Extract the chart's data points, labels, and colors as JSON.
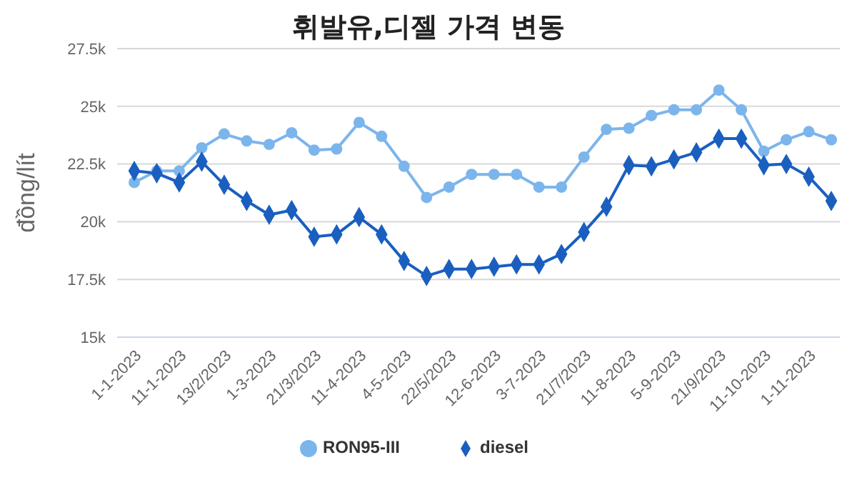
{
  "chart_data": {
    "type": "line",
    "title": "휘발유,디젤 가격 변동",
    "ylabel": "đồng/lít",
    "categories": [
      "1-1-2023",
      null,
      "11-1-2023",
      null,
      "13/2/2023",
      null,
      "1-3-2023",
      null,
      "21/3/2023",
      null,
      "11-4-2023",
      null,
      "4-5-2023",
      null,
      "22/5/2023",
      null,
      "12-6-2023",
      null,
      "3-7-2023",
      null,
      "21/7/2023",
      null,
      "11-8-2023",
      null,
      "5-9-2023",
      null,
      "21/9/2023",
      null,
      "11-10-2023",
      null,
      "1-11-2023",
      null
    ],
    "series": [
      {
        "name": "RON95-III",
        "color": "#7cb5ec",
        "marker": "circle",
        "values": [
          21700,
          22200,
          22200,
          23200,
          23800,
          23500,
          23350,
          23850,
          23100,
          23150,
          24300,
          23700,
          22400,
          21050,
          21500,
          22050,
          22050,
          22050,
          21500,
          21500,
          22800,
          24000,
          24050,
          24600,
          24850,
          24850,
          25700,
          24850,
          23050,
          23550,
          23900,
          23550
        ]
      },
      {
        "name": "diesel",
        "color": "#1a5fc0",
        "marker": "diamond",
        "values": [
          22200,
          22100,
          21700,
          22600,
          21600,
          20900,
          20300,
          20500,
          19350,
          19450,
          20200,
          19450,
          18300,
          17650,
          17950,
          17950,
          18050,
          18150,
          18150,
          18600,
          19550,
          20650,
          22450,
          22400,
          22700,
          23000,
          23600,
          23600,
          22450,
          22500,
          21950,
          20900
        ]
      }
    ],
    "ylim": [
      15000,
      27500
    ],
    "yticks": [
      {
        "value": 15000,
        "label": "15k"
      },
      {
        "value": 17500,
        "label": "17.5k"
      },
      {
        "value": 20000,
        "label": "20k"
      },
      {
        "value": 22500,
        "label": "22.5k"
      },
      {
        "value": 25000,
        "label": "25k"
      },
      {
        "value": 27500,
        "label": "27.5k"
      }
    ],
    "grid": "y",
    "legend": "bottom",
    "line_style": "solid"
  }
}
